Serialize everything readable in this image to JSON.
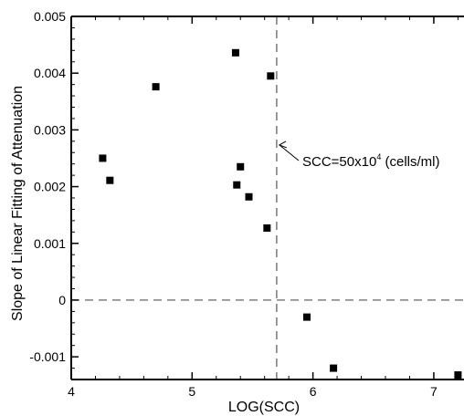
{
  "chart_data": {
    "type": "scatter",
    "title": "",
    "xlabel": "LOG(SCC)",
    "ylabel": "Slope of Linear Fitting of Attenuation",
    "xlim": [
      4,
      7.25
    ],
    "ylim": [
      -0.0014,
      0.005
    ],
    "xticks": [
      4,
      5,
      6,
      7
    ],
    "xtick_labels": [
      "4",
      "5",
      "6",
      "7"
    ],
    "yticks": [
      -0.001,
      0,
      0.001,
      0.002,
      0.003,
      0.004,
      0.005
    ],
    "ytick_labels": [
      "-0.001",
      "0",
      "0.001",
      "0.002",
      "0.003",
      "0.004",
      "0.005"
    ],
    "grid": false,
    "legend": "none",
    "marker": "square",
    "marker_color": "#000000",
    "reference_lines": [
      {
        "orientation": "vertical",
        "x": 5.7,
        "style": "dashed"
      },
      {
        "orientation": "horizontal",
        "y": 0,
        "style": "dashed"
      }
    ],
    "annotation": {
      "text_prefix": "SCC=50x10",
      "superscript": "4",
      "text_suffix": " (cells/ml)",
      "arrow_target": {
        "x": 5.7,
        "y": 0.00275
      }
    },
    "points": [
      {
        "x": 4.26,
        "y": 0.0025
      },
      {
        "x": 4.32,
        "y": 0.00211
      },
      {
        "x": 4.7,
        "y": 0.00376
      },
      {
        "x": 5.36,
        "y": 0.00436
      },
      {
        "x": 5.37,
        "y": 0.00203
      },
      {
        "x": 5.4,
        "y": 0.00235
      },
      {
        "x": 5.47,
        "y": 0.00182
      },
      {
        "x": 5.62,
        "y": 0.00127
      },
      {
        "x": 5.65,
        "y": 0.00395
      },
      {
        "x": 5.95,
        "y": -0.0003
      },
      {
        "x": 6.17,
        "y": -0.0012
      },
      {
        "x": 7.2,
        "y": -0.00132
      }
    ]
  }
}
